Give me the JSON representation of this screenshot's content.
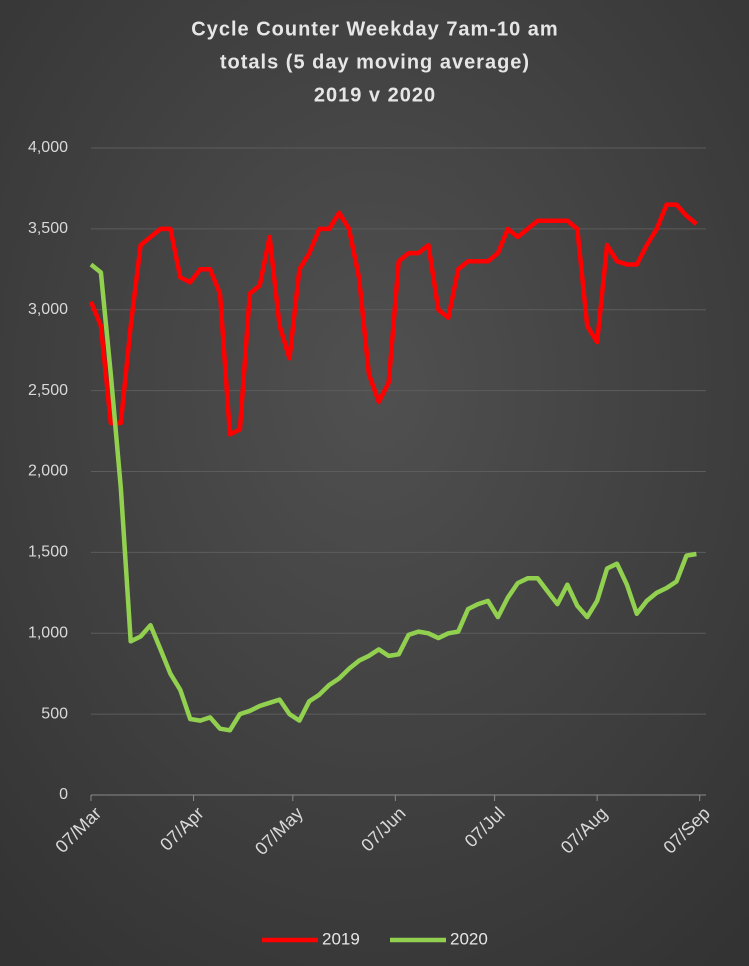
{
  "chart_data": {
    "type": "line",
    "title": [
      "Cycle Counter Weekday 7am-10 am",
      "totals (5 day moving average)",
      "2019 v 2020"
    ],
    "x": [
      0,
      3,
      6,
      9,
      12,
      15,
      18,
      21,
      24,
      27,
      30,
      33,
      36,
      39,
      42,
      45,
      48,
      51,
      54,
      57,
      60,
      63,
      66,
      69,
      72,
      75,
      78,
      81,
      84,
      87,
      90,
      93,
      96,
      99,
      102,
      105,
      108,
      111,
      114,
      117,
      120,
      123,
      126,
      129,
      132,
      135,
      138,
      141,
      144,
      147,
      150,
      153,
      156,
      159,
      162,
      165,
      168,
      171,
      174,
      177,
      180,
      183
    ],
    "xlim": [
      0,
      185
    ],
    "xticks": [
      {
        "value": 0,
        "label": "07/Mar"
      },
      {
        "value": 31,
        "label": "07/Apr"
      },
      {
        "value": 61,
        "label": "07/May"
      },
      {
        "value": 92,
        "label": "07/Jun"
      },
      {
        "value": 122,
        "label": "07/Jul"
      },
      {
        "value": 153,
        "label": "07/Aug"
      },
      {
        "value": 184,
        "label": "07/Sep"
      }
    ],
    "ylim": [
      0,
      4000
    ],
    "yticks": [
      0,
      500,
      {
        "value": 1000,
        "label": "1,000"
      },
      {
        "value": 1500,
        "label": "1,500"
      },
      {
        "value": 2000,
        "label": "2,000"
      },
      {
        "value": 2500,
        "label": "2,500"
      },
      {
        "value": 3000,
        "label": "3,000"
      },
      {
        "value": 3500,
        "label": "3,500"
      },
      {
        "value": 4000,
        "label": "4,000"
      }
    ],
    "grid": true,
    "legend": "bottom",
    "series": [
      {
        "name": "2019",
        "color": "#ff0000",
        "values": [
          3050,
          2900,
          2300,
          2300,
          2900,
          3400,
          3450,
          3500,
          3500,
          3200,
          3170,
          3250,
          3250,
          3100,
          2230,
          2260,
          3100,
          3150,
          3450,
          2900,
          2700,
          3250,
          3350,
          3500,
          3500,
          3600,
          3500,
          3200,
          2600,
          2430,
          2550,
          3300,
          3350,
          3350,
          3400,
          3000,
          2950,
          3250,
          3300,
          3300,
          3300,
          3350,
          3500,
          3450,
          3500,
          3550,
          3550,
          3550,
          3550,
          3500,
          2900,
          2800,
          3400,
          3300,
          3280,
          3280,
          3400,
          3500,
          3650,
          3650,
          3580,
          3530
        ]
      },
      {
        "name": "2020",
        "color": "#92d050",
        "values": [
          3280,
          3230,
          2600,
          1900,
          950,
          980,
          1050,
          900,
          750,
          650,
          470,
          460,
          480,
          410,
          400,
          500,
          520,
          550,
          570,
          590,
          500,
          460,
          580,
          620,
          680,
          720,
          780,
          830,
          860,
          900,
          860,
          870,
          990,
          1010,
          1000,
          970,
          1000,
          1010,
          1150,
          1180,
          1200,
          1100,
          1220,
          1310,
          1340,
          1340,
          1260,
          1180,
          1300,
          1170,
          1100,
          1200,
          1400,
          1430,
          1300,
          1120,
          1200,
          1250,
          1280,
          1320,
          1480,
          1490
        ]
      }
    ]
  }
}
